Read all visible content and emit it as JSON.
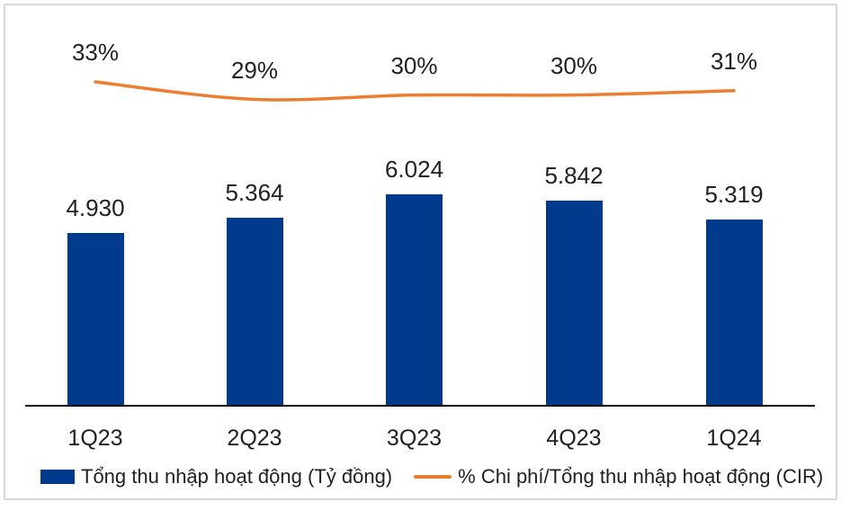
{
  "card": {
    "background": "#FFFFFF",
    "border_color": "#D9D9D9"
  },
  "colors": {
    "bar": "#003A8C",
    "line": "#ED7D31",
    "axis": "#0A0A0A",
    "text": "#212121"
  },
  "chart_data": {
    "type": "combo-bar-line",
    "categories": [
      "1Q23",
      "2Q23",
      "3Q23",
      "4Q23",
      "1Q24"
    ],
    "series": [
      {
        "name": "Tổng thu nhập hoạt động (Tỷ đồng)",
        "type": "bar",
        "color": "#003A8C",
        "values": [
          4930,
          5364,
          6024,
          5842,
          5319
        ],
        "labels": [
          "4.930",
          "5.364",
          "6.024",
          "5.842",
          "5.319"
        ]
      },
      {
        "name": "% Chi phí/Tổng thu nhập hoạt động (CIR)",
        "type": "line",
        "color": "#ED7D31",
        "values": [
          33,
          29,
          30,
          30,
          31
        ],
        "labels": [
          "33%",
          "29%",
          "30%",
          "30%",
          "31%"
        ]
      }
    ],
    "title": "",
    "xlabel": "",
    "ylabel": "",
    "grid": false,
    "y_axis_visible": false,
    "legend_position": "bottom"
  }
}
